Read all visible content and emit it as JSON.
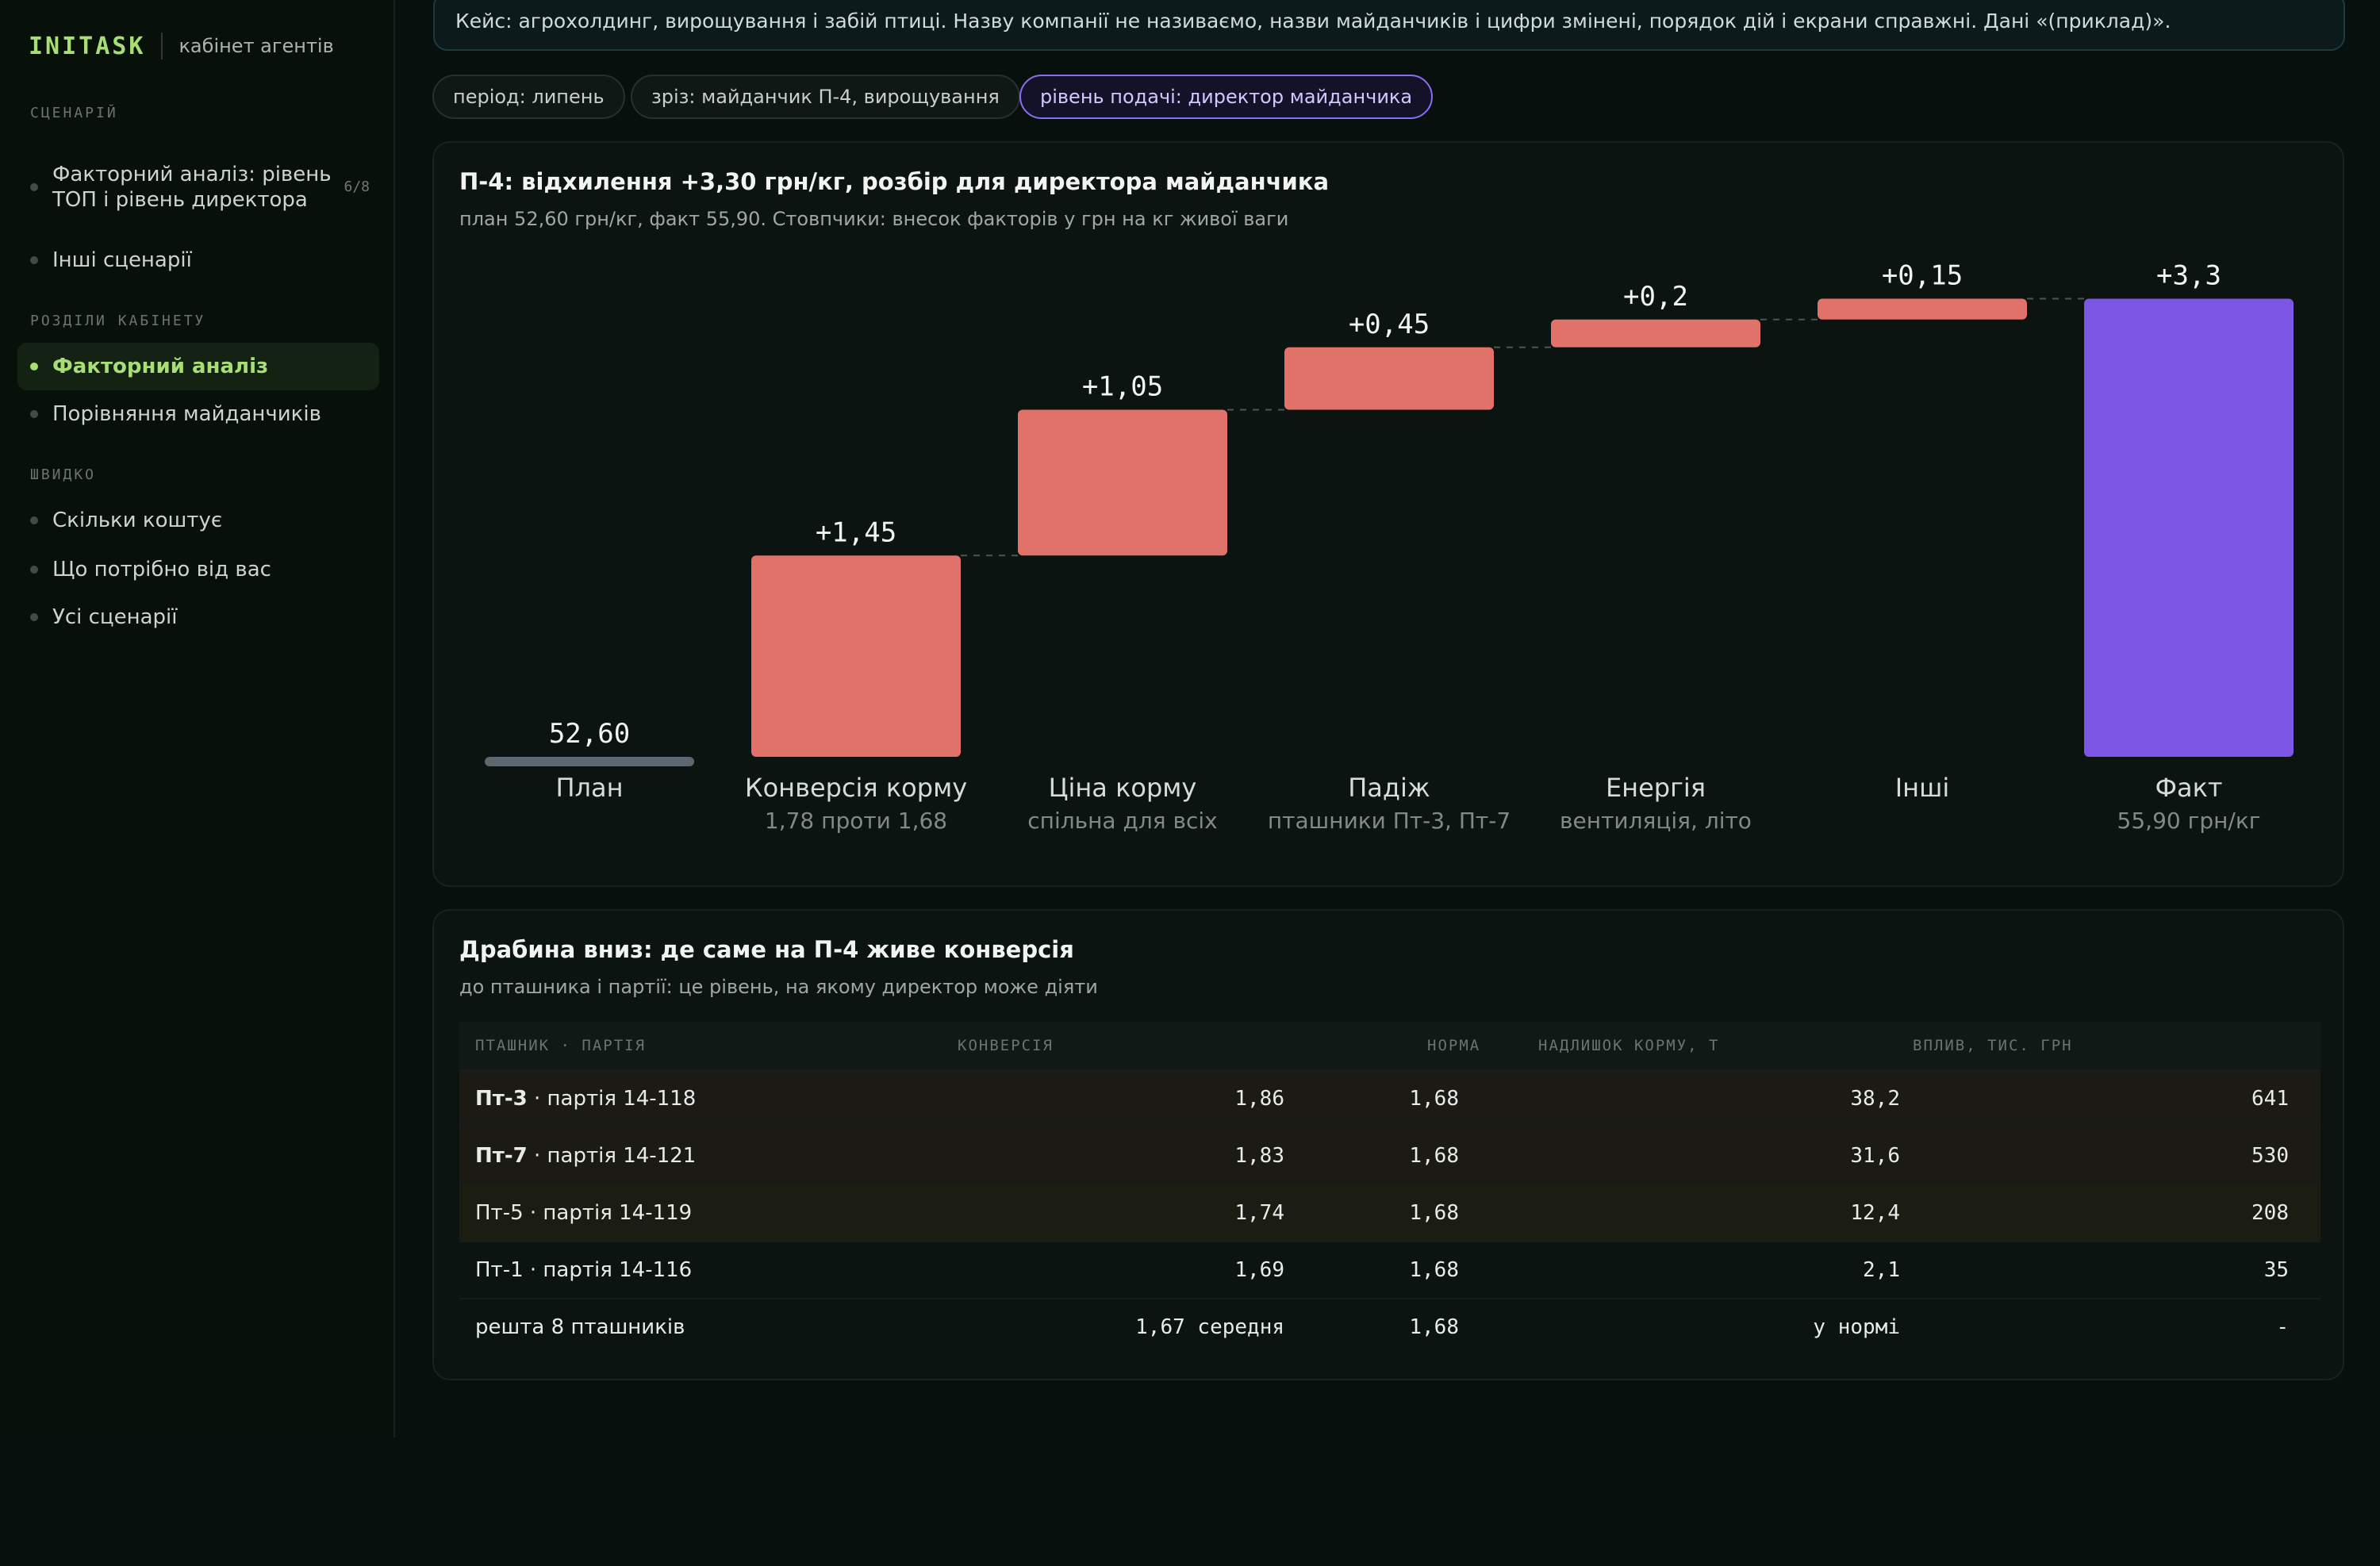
{
  "app": {
    "logo": "INITASK",
    "subtitle": "кабінет агентів"
  },
  "sidebar": {
    "sections": [
      {
        "label": "СЦЕНАРІЙ",
        "items": [
          {
            "label": "Факторний аналіз: рівень ТОП і рівень директора",
            "count": "6/8"
          },
          {
            "label": "Інші сценарії"
          }
        ]
      },
      {
        "label": "РОЗДІЛИ КАБІНЕТУ",
        "items": [
          {
            "label": "Факторний аналіз",
            "active": true
          },
          {
            "label": "Порівняння майданчиків"
          }
        ]
      },
      {
        "label": "ШВИДКО",
        "items": [
          {
            "label": "Скільки коштує"
          },
          {
            "label": "Що потрібно від вас"
          },
          {
            "label": "Усі сценарії"
          }
        ]
      }
    ]
  },
  "banner": "Кейс: агрохолдинг, вирощування і забій птиці. Назву компанії не називаємо, назви майданчиків і цифри змінені, порядок дій і екрани справжні. Дані «(приклад)».",
  "filters": [
    {
      "label": "період: липень"
    },
    {
      "label": "зріз: майданчик П-4, вирощування"
    },
    {
      "label": "рівень подачі: директор майданчика",
      "active": true
    }
  ],
  "waterfall_card": {
    "title": "П-4: відхилення +3,30 грн/кг, розбір для директора майданчика",
    "subtitle": "план 52,60 грн/кг, факт 55,90. Стовпчики: внесок факторів у грн на кг живої ваги"
  },
  "chart_data": {
    "type": "bar",
    "subtype": "waterfall",
    "categories": [
      "План",
      "Конверсія корму",
      "Ціна корму",
      "Падіж",
      "Енергія",
      "Інші",
      "Факт"
    ],
    "category_notes": [
      "",
      "1,78 проти 1,68",
      "спільна для всіх",
      "пташники Пт-3, Пт-7",
      "вентиляція, літо",
      "",
      "55,90 грн/кг"
    ],
    "values": [
      52.6,
      1.45,
      1.05,
      0.45,
      0.2,
      0.15,
      3.3
    ],
    "value_labels": [
      "52,60",
      "+1,45",
      "+1,05",
      "+0,45",
      "+0,2",
      "+0,15",
      "+3,3"
    ],
    "colors": {
      "baseline": "#5c6770",
      "increase": "#e0726a",
      "total": "#7e56e6",
      "connector": "#4a5650"
    }
  },
  "ladder_card": {
    "title": "Драбина вниз: де саме на П-4 живе конверсія",
    "subtitle": "до пташника і партії: це рівень, на якому директор може діяти",
    "columns": [
      "ПТАШНИК · ПАРТІЯ",
      "КОНВЕРСІЯ",
      "НОРМА",
      "НАДЛИШОК КОРМУ, Т",
      "ВПЛИВ, ТИС. ГРН"
    ],
    "rows": [
      {
        "house": "Пт-3",
        "batch": " · партія 14-118",
        "conv": "1,86",
        "norm": "1,68",
        "excess": "38,2",
        "impact": "641"
      },
      {
        "house": "Пт-7",
        "batch": " · партія 14-121",
        "conv": "1,83",
        "norm": "1,68",
        "excess": "31,6",
        "impact": "530"
      },
      {
        "house": "Пт-5",
        "batch": " · партія 14-119",
        "conv": "1,74",
        "norm": "1,68",
        "excess": "12,4",
        "impact": "208"
      },
      {
        "house": "Пт-1",
        "batch": " · партія 14-116",
        "conv": "1,69",
        "norm": "1,68",
        "excess": "2,1",
        "impact": "35"
      },
      {
        "house": "решта 8 пташників",
        "batch": "",
        "conv": "1,67 середня",
        "norm": "1,68",
        "excess": "у нормі",
        "impact": "-"
      }
    ]
  }
}
